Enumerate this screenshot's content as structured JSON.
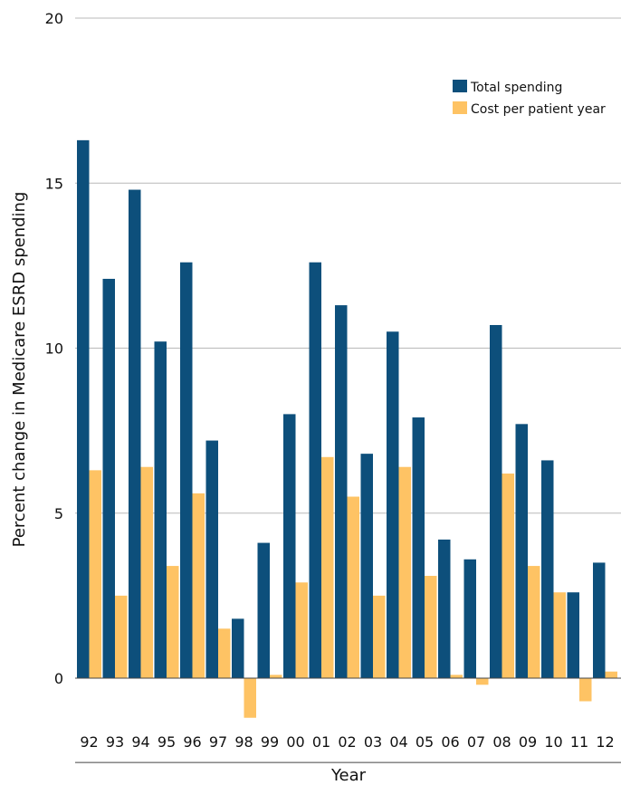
{
  "colors": {
    "total_spending": "#0d4f7b",
    "cost_per_patient_year": "#fec364",
    "grid": "#b8b8b8",
    "baseline": "#444444"
  },
  "chart_data": {
    "type": "bar",
    "title": "",
    "xlabel": "Year",
    "ylabel": "Percent change in Medicare ESRD spending",
    "ylim": [
      -2.5,
      20
    ],
    "yticks": [
      0,
      5,
      10,
      15,
      20
    ],
    "grid": true,
    "legend_position": "top-right",
    "categories": [
      "92",
      "93",
      "94",
      "95",
      "96",
      "97",
      "98",
      "99",
      "00",
      "01",
      "02",
      "03",
      "04",
      "05",
      "06",
      "07",
      "08",
      "09",
      "10",
      "11",
      "12"
    ],
    "series": [
      {
        "name": "Total spending",
        "values": [
          16.3,
          12.1,
          14.8,
          10.2,
          12.6,
          7.2,
          1.8,
          4.1,
          8.0,
          12.6,
          11.3,
          6.8,
          10.5,
          7.9,
          4.2,
          3.6,
          10.7,
          7.7,
          6.6,
          2.6,
          3.5
        ]
      },
      {
        "name": "Cost per patient year",
        "values": [
          6.3,
          2.5,
          6.4,
          3.4,
          5.6,
          1.5,
          -1.2,
          0.1,
          2.9,
          6.7,
          5.5,
          2.5,
          6.4,
          3.1,
          0.1,
          -0.2,
          6.2,
          3.4,
          2.6,
          -0.7,
          0.2
        ]
      }
    ]
  }
}
